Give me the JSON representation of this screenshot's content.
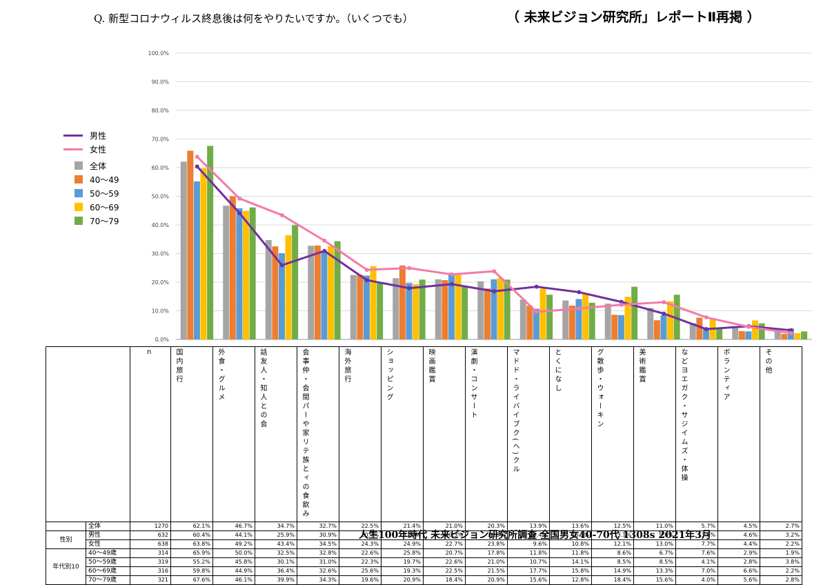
{
  "header": {
    "question": "Q. 新型コロナウィルス終息後は何をやりたいですか。（いくつでも）",
    "report": "（ 未来ビジョン研究所」レポートⅡ再掲 ）"
  },
  "footer": {
    "source": "人生100年時代 未来ビジョン研究所調査 全国男女40-70代 1308s 2021年3月"
  },
  "legend": {
    "items": [
      {
        "label": "男性",
        "kind": "line",
        "color": "#7030A0"
      },
      {
        "label": "女性",
        "kind": "line",
        "color": "#F27BA8"
      },
      {
        "label": "全体",
        "kind": "bar",
        "color": "#A5A5A5"
      },
      {
        "label": "40〜49",
        "kind": "bar",
        "color": "#ED7D31"
      },
      {
        "label": "50〜59",
        "kind": "bar",
        "color": "#5B9BD5"
      },
      {
        "label": "60〜69",
        "kind": "bar",
        "color": "#FFC000"
      },
      {
        "label": "70〜79",
        "kind": "bar",
        "color": "#70AD47"
      }
    ]
  },
  "chart_data": {
    "type": "bar",
    "title": "Q. 新型コロナウィルス終息後は何をやりたいですか。（いくつでも）",
    "ylim": [
      0,
      100
    ],
    "yticks": [
      "100.0%",
      "90.0%",
      "80.0%",
      "70.0%",
      "60.0%",
      "50.0%",
      "40.0%",
      "30.0%",
      "20.0%",
      "10.0%",
      "0.0%"
    ],
    "categories": [
      "国内旅行",
      "外食・グルメ",
      "友人・知人との会話",
      "仲間や家族との食事会・パーティ・リアル飲み会",
      "海外旅行",
      "ショッピング",
      "映画鑑賞",
      "演劇・コンサート",
      "ドライブ（バイク・サイクル）",
      "とくになし",
      "散歩・ウォーキング",
      "美術鑑賞",
      "ヨガ・ジム・体操などエクササイズ",
      "ボランティア",
      "その他"
    ],
    "category_labels": [
      "国内旅行",
      "外食・グルメ",
      "友人・知人との会話",
      "仲間や家族との食事会・パーティ・リアル飲み会",
      "海外旅行",
      "ショッピング",
      "映画鑑賞",
      "演劇・コンサート",
      "ドライブ（バイク・サイクル）",
      "とくになし",
      "散歩・ウォーキング",
      "美術鑑賞",
      "ヨガ・ジム・体操などエクササイズ",
      "ボランティア",
      "その他"
    ],
    "bar_series": [
      {
        "name": "全体",
        "color": "#A5A5A5",
        "values": [
          62.1,
          46.7,
          34.7,
          32.7,
          22.5,
          21.4,
          21.0,
          20.3,
          13.9,
          13.6,
          12.5,
          11.0,
          5.7,
          4.5,
          2.7
        ]
      },
      {
        "name": "40〜49",
        "color": "#ED7D31",
        "values": [
          65.9,
          50.0,
          32.5,
          32.8,
          22.6,
          25.8,
          20.7,
          17.8,
          11.8,
          11.8,
          8.6,
          6.7,
          7.6,
          2.9,
          1.9
        ]
      },
      {
        "name": "50〜59",
        "color": "#5B9BD5",
        "values": [
          55.2,
          45.8,
          30.1,
          31.0,
          22.3,
          19.7,
          22.6,
          21.0,
          10.7,
          14.1,
          8.5,
          8.5,
          4.1,
          2.8,
          3.8
        ]
      },
      {
        "name": "60〜69",
        "color": "#FFC000",
        "values": [
          59.8,
          44.9,
          36.4,
          32.6,
          25.6,
          19.3,
          22.5,
          21.5,
          17.7,
          15.8,
          14.9,
          13.3,
          7.0,
          6.6,
          2.2
        ]
      },
      {
        "name": "70〜79",
        "color": "#70AD47",
        "values": [
          67.6,
          46.1,
          39.9,
          34.3,
          19.6,
          20.9,
          18.4,
          20.9,
          15.6,
          12.8,
          18.4,
          15.6,
          4.0,
          5.6,
          2.8
        ]
      }
    ],
    "line_series": [
      {
        "name": "男性",
        "color": "#7030A0",
        "values": [
          60.4,
          44.1,
          25.9,
          30.9,
          20.7,
          17.9,
          19.3,
          16.8,
          18.4,
          16.5,
          13.1,
          9.0,
          3.6,
          4.6,
          3.2
        ]
      },
      {
        "name": "女性",
        "color": "#F27BA8",
        "values": [
          63.8,
          49.2,
          43.4,
          34.5,
          24.3,
          24.9,
          22.7,
          23.8,
          9.6,
          10.8,
          12.1,
          13.0,
          7.7,
          4.4,
          2.2
        ]
      }
    ]
  },
  "table": {
    "n_label": "n",
    "header_labels": [
      "国内旅行",
      "外食・グルメ",
      "話友人・知人との会",
      "会事仲・会間パーや家リテ族とィの食飲み",
      "海外旅行",
      "ショッピング",
      "映画鑑賞",
      "演劇・コンサート",
      "マドド・ライバイブク(ヘ)クル",
      "とくになし",
      "グ散歩・ウォーキン",
      "美術鑑賞",
      "などヨエガク・サジイムズ・体操",
      "ボランティア",
      "その他"
    ],
    "group_sex": "性別",
    "group_age": "年代別10",
    "rows": [
      {
        "label": "全体",
        "n": "1270",
        "values": [
          "62.1%",
          "46.7%",
          "34.7%",
          "32.7%",
          "22.5%",
          "21.4%",
          "21.0%",
          "20.3%",
          "13.9%",
          "13.6%",
          "12.5%",
          "11.0%",
          "5.7%",
          "4.5%",
          "2.7%"
        ]
      },
      {
        "label": "男性",
        "n": "632",
        "values": [
          "60.4%",
          "44.1%",
          "25.9%",
          "30.9%",
          "20.7%",
          "17.9%",
          "19.3%",
          "16.8%",
          "18.4%",
          "16.5%",
          "13.1%",
          "9.0%",
          "3.6%",
          "4.6%",
          "3.2%"
        ]
      },
      {
        "label": "女性",
        "n": "638",
        "values": [
          "63.8%",
          "49.2%",
          "43.4%",
          "34.5%",
          "24.3%",
          "24.9%",
          "22.7%",
          "23.8%",
          "9.6%",
          "10.8%",
          "12.1%",
          "13.0%",
          "7.7%",
          "4.4%",
          "2.2%"
        ]
      },
      {
        "label": "40〜49歳",
        "n": "314",
        "values": [
          "65.9%",
          "50.0%",
          "32.5%",
          "32.8%",
          "22.6%",
          "25.8%",
          "20.7%",
          "17.8%",
          "11.8%",
          "11.8%",
          "8.6%",
          "6.7%",
          "7.6%",
          "2.9%",
          "1.9%"
        ]
      },
      {
        "label": "50〜59歳",
        "n": "319",
        "values": [
          "55.2%",
          "45.8%",
          "30.1%",
          "31.0%",
          "22.3%",
          "19.7%",
          "22.6%",
          "21.0%",
          "10.7%",
          "14.1%",
          "8.5%",
          "8.5%",
          "4.1%",
          "2.8%",
          "3.8%"
        ]
      },
      {
        "label": "60〜69歳",
        "n": "316",
        "values": [
          "59.8%",
          "44.9%",
          "36.4%",
          "32.6%",
          "25.6%",
          "19.3%",
          "22.5%",
          "21.5%",
          "17.7%",
          "15.8%",
          "14.9%",
          "13.3%",
          "7.0%",
          "6.6%",
          "2.2%"
        ]
      },
      {
        "label": "70〜79歳",
        "n": "321",
        "values": [
          "67.6%",
          "46.1%",
          "39.9%",
          "34.3%",
          "19.6%",
          "20.9%",
          "18.4%",
          "20.9%",
          "15.6%",
          "12.8%",
          "18.4%",
          "15.6%",
          "4.0%",
          "5.6%",
          "2.8%"
        ]
      }
    ]
  }
}
